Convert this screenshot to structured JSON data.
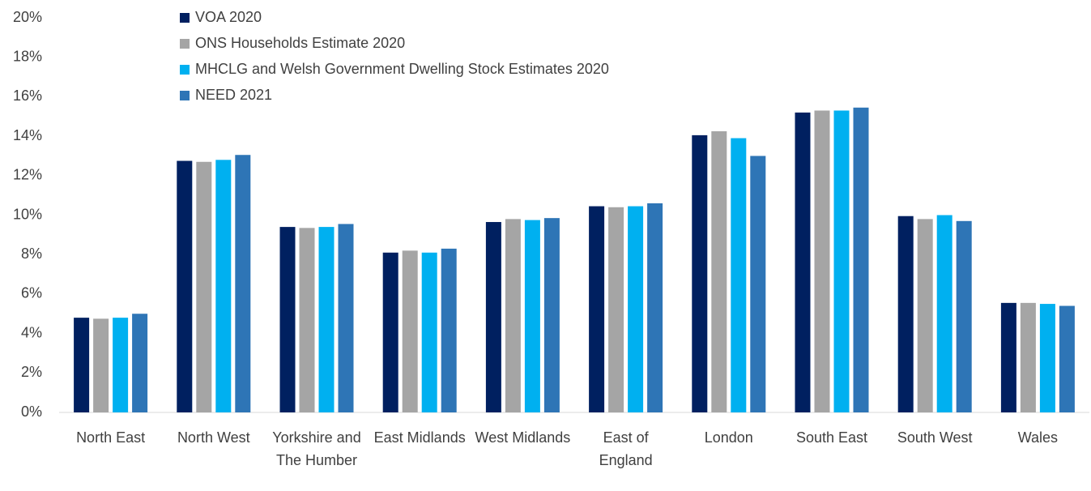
{
  "chart_data": {
    "type": "bar",
    "categories": [
      "North East",
      "North West",
      "Yorkshire and The Humber",
      "East Midlands",
      "West Midlands",
      "East of England",
      "London",
      "South East",
      "South West",
      "Wales"
    ],
    "series": [
      {
        "name": "VOA 2020",
        "color": "#002060",
        "values": [
          4.8,
          12.75,
          9.4,
          8.1,
          9.65,
          10.45,
          14.05,
          15.2,
          9.95,
          5.55
        ]
      },
      {
        "name": "ONS Households Estimate 2020",
        "color": "#a5a5a5",
        "values": [
          4.75,
          12.7,
          9.35,
          8.2,
          9.8,
          10.4,
          14.25,
          15.3,
          9.8,
          5.55
        ]
      },
      {
        "name": "MHCLG and Welsh Government Dwelling Stock Estimates 2020",
        "color": "#00b0f0",
        "values": [
          4.8,
          12.8,
          9.4,
          8.1,
          9.75,
          10.45,
          13.9,
          15.3,
          10.0,
          5.5
        ]
      },
      {
        "name": "NEED 2021",
        "color": "#2e75b6",
        "values": [
          5.0,
          13.05,
          9.55,
          8.3,
          9.85,
          10.6,
          13.0,
          15.45,
          9.7,
          5.4
        ]
      }
    ],
    "ylim": [
      0,
      20
    ],
    "yticks": [
      {
        "value": 0,
        "label": "0%"
      },
      {
        "value": 2,
        "label": "2%"
      },
      {
        "value": 4,
        "label": "4%"
      },
      {
        "value": 6,
        "label": "6%"
      },
      {
        "value": 8,
        "label": "8%"
      },
      {
        "value": 10,
        "label": "10%"
      },
      {
        "value": 12,
        "label": "12%"
      },
      {
        "value": 14,
        "label": "14%"
      },
      {
        "value": 16,
        "label": "16%"
      },
      {
        "value": 18,
        "label": "18%"
      },
      {
        "value": 20,
        "label": "20%"
      }
    ],
    "grid": false,
    "legend": "top-left"
  }
}
